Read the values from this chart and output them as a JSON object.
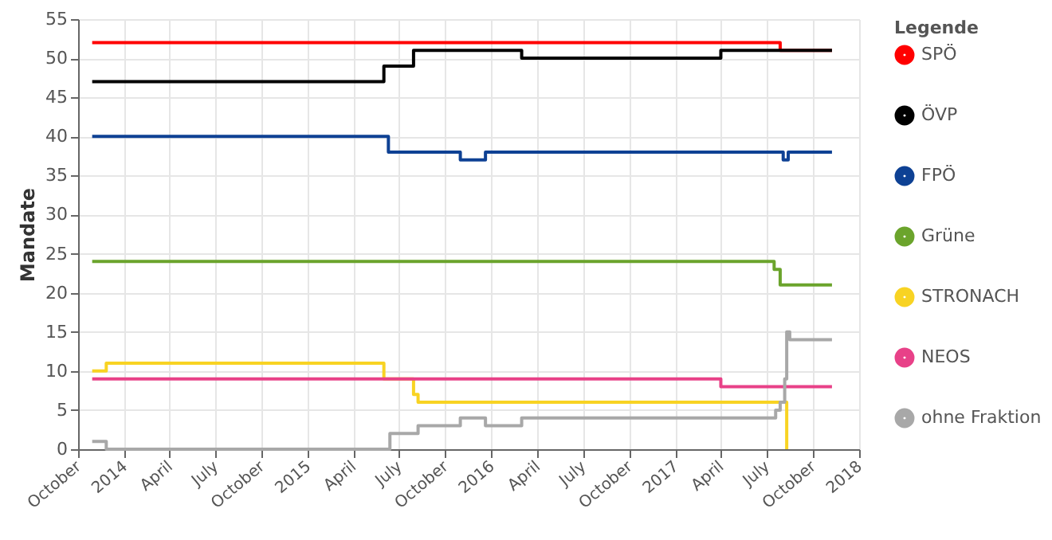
{
  "chart_data": {
    "type": "step",
    "ylabel": "Mandate",
    "legend_title": "Legende",
    "legend": "right",
    "grid": true,
    "marker": "none",
    "line_style": "solid",
    "xlim": [
      "2013-10-01",
      "2018-01-01"
    ],
    "ylim": [
      0,
      55
    ],
    "yticks": [
      0,
      5,
      10,
      15,
      20,
      25,
      30,
      35,
      40,
      45,
      50,
      55
    ],
    "xticks": [
      {
        "value": "2013-10-01",
        "label": "October"
      },
      {
        "value": "2014-01-01",
        "label": "2014"
      },
      {
        "value": "2014-04-01",
        "label": "April"
      },
      {
        "value": "2014-07-01",
        "label": "July"
      },
      {
        "value": "2014-10-01",
        "label": "October"
      },
      {
        "value": "2015-01-01",
        "label": "2015"
      },
      {
        "value": "2015-04-01",
        "label": "April"
      },
      {
        "value": "2015-07-01",
        "label": "July"
      },
      {
        "value": "2015-10-01",
        "label": "October"
      },
      {
        "value": "2016-01-01",
        "label": "2016"
      },
      {
        "value": "2016-04-01",
        "label": "April"
      },
      {
        "value": "2016-07-01",
        "label": "July"
      },
      {
        "value": "2016-10-01",
        "label": "October"
      },
      {
        "value": "2017-01-01",
        "label": "2017"
      },
      {
        "value": "2017-04-01",
        "label": "April"
      },
      {
        "value": "2017-07-01",
        "label": "July"
      },
      {
        "value": "2017-10-01",
        "label": "October"
      },
      {
        "value": "2018-01-01",
        "label": "2018"
      }
    ],
    "series": [
      {
        "name": "SPÖ",
        "color": "#ff0000",
        "x": [
          "2013-10-29",
          "2017-07-28",
          "2017-11-08"
        ],
        "values": [
          52,
          51,
          51
        ]
      },
      {
        "name": "ÖVP",
        "color": "#000000",
        "x": [
          "2013-10-29",
          "2015-06-01",
          "2015-07-30",
          "2016-03-01",
          "2017-04-01",
          "2017-11-08"
        ],
        "values": [
          47,
          49,
          51,
          50,
          51,
          51
        ]
      },
      {
        "name": "FPÖ",
        "color": "#0e4194",
        "x": [
          "2013-10-29",
          "2015-06-10",
          "2015-10-31",
          "2015-12-20",
          "2017-08-03",
          "2017-08-13",
          "2017-11-08"
        ],
        "values": [
          40,
          38,
          37,
          38,
          37,
          38,
          38
        ]
      },
      {
        "name": "Grüne",
        "color": "#6ba42c",
        "x": [
          "2013-10-29",
          "2017-07-16",
          "2017-07-28",
          "2017-11-08"
        ],
        "values": [
          24,
          23,
          21,
          21
        ]
      },
      {
        "name": "STRONACH",
        "color": "#f8d323",
        "x": [
          "2013-10-29",
          "2013-11-26",
          "2015-06-01",
          "2015-07-30",
          "2015-08-08",
          "2017-08-10"
        ],
        "values": [
          10,
          11,
          9,
          7,
          6,
          0
        ]
      },
      {
        "name": "NEOS",
        "color": "#e84188",
        "x": [
          "2013-10-29",
          "2017-04-01",
          "2017-11-08"
        ],
        "values": [
          9,
          8,
          8
        ]
      },
      {
        "name": "ohne Fraktion",
        "color": "#a8a8a8",
        "x": [
          "2013-10-29",
          "2013-11-26",
          "2015-06-13",
          "2015-08-08",
          "2015-10-31",
          "2015-12-20",
          "2016-03-01",
          "2017-07-19",
          "2017-07-28",
          "2017-08-06",
          "2017-08-10",
          "2017-08-16",
          "2017-11-08"
        ],
        "values": [
          1,
          0,
          2,
          3,
          4,
          3,
          4,
          5,
          6,
          9,
          15,
          14,
          14
        ]
      }
    ]
  }
}
